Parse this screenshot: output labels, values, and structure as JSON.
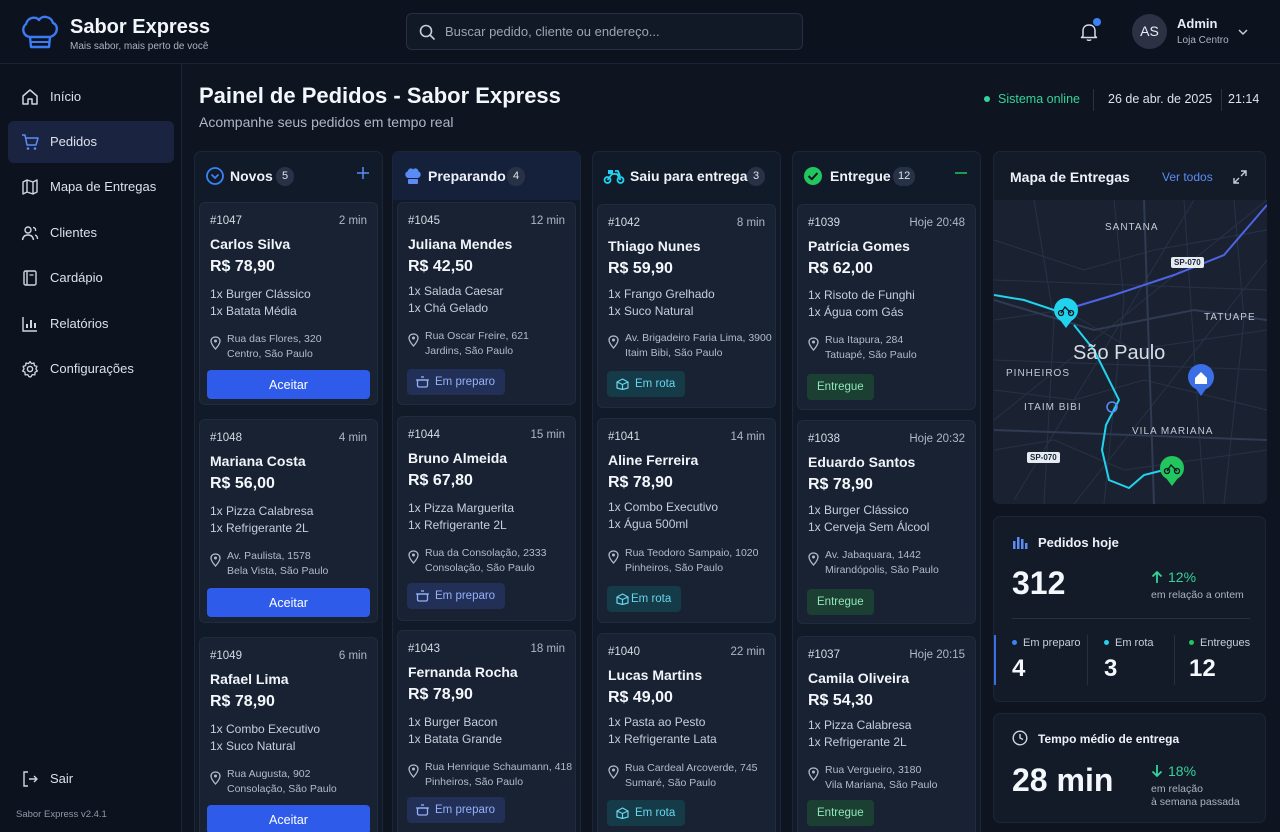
{
  "header": {
    "brand": "Sabor Express",
    "tagline": "Mais sabor, mais perto de você",
    "search_placeholder": "Buscar pedido, cliente ou endereço...",
    "user_initials": "AS",
    "user_name": "Admin",
    "user_store": "Loja Centro"
  },
  "sidebar": {
    "items": [
      {
        "label": "Início",
        "icon": "home-icon"
      },
      {
        "label": "Pedidos",
        "icon": "cart-icon"
      },
      {
        "label": "Mapa de Entregas",
        "icon": "map-icon"
      },
      {
        "label": "Clientes",
        "icon": "users-icon"
      },
      {
        "label": "Cardápio",
        "icon": "menu-book-icon"
      },
      {
        "label": "Relatórios",
        "icon": "bar-chart-icon"
      },
      {
        "label": "Configurações",
        "icon": "gear-icon"
      }
    ],
    "logout": "Sair",
    "version": "Sabor Express v2.4.1"
  },
  "page": {
    "title": "Painel de Pedidos - Sabor Express",
    "subtitle": "Acompanhe seus pedidos em tempo real",
    "status": "Sistema online",
    "date": "26 de abr. de 2025",
    "time": "21:14"
  },
  "accent_colors": {
    "novos": "#3b82f6",
    "preparando": "#3b82f6",
    "rota": "#22d3ee",
    "entregue": "#22c55e"
  },
  "columns": {
    "novos": {
      "title": "Novos",
      "count": "5",
      "orders": [
        {
          "id": "#1047",
          "time": "2 min",
          "name": "Carlos Silva",
          "price": "R$ 78,90",
          "items": [
            "1x  Burger Clássico",
            "1x  Batata Média"
          ],
          "addr1": "Rua das Flores, 320",
          "addr2": "Centro, São Paulo",
          "action": "Aceitar"
        },
        {
          "id": "#1048",
          "time": "4 min",
          "name": "Mariana Costa",
          "price": "R$ 56,00",
          "items": [
            "1x  Pizza Calabresa",
            "1x  Refrigerante 2L"
          ],
          "addr1": "Av. Paulista, 1578",
          "addr2": "Bela Vista, São Paulo",
          "action": "Aceitar"
        },
        {
          "id": "#1049",
          "time": "6 min",
          "name": "Rafael Lima",
          "price": "R$ 78,90",
          "items": [
            "1x  Combo Executivo",
            "1x  Suco Natural"
          ],
          "addr1": "Rua Augusta, 902",
          "addr2": "Consolação, São Paulo",
          "action": "Aceitar"
        }
      ]
    },
    "preparando": {
      "title": "Preparando",
      "count": "4",
      "orders": [
        {
          "id": "#1045",
          "time": "12 min",
          "name": "Juliana Mendes",
          "price": "R$ 42,50",
          "items": [
            "1x  Salada Caesar",
            "1x  Chá Gelado"
          ],
          "addr1": "Rua Oscar Freire, 621",
          "addr2": "Jardins, São Paulo",
          "status": "Em preparo"
        },
        {
          "id": "#1044",
          "time": "15 min",
          "name": "Bruno Almeida",
          "price": "R$ 67,80",
          "items": [
            "1x  Pizza Marguerita",
            "1x  Refrigerante 2L"
          ],
          "addr1": "Rua da Consolação, 2333",
          "addr2": "Consolação, São Paulo",
          "status": "Em preparo"
        },
        {
          "id": "#1043",
          "time": "18 min",
          "name": "Fernanda Rocha",
          "price": "R$ 78,90",
          "items": [
            "1x  Burger Bacon",
            "1x  Batata Grande"
          ],
          "addr1": "Rua Henrique Schaumann, 418",
          "addr2": "Pinheiros, São Paulo",
          "status": "Em preparo"
        }
      ]
    },
    "rota": {
      "title": "Saiu para entrega",
      "count": "3",
      "orders": [
        {
          "id": "#1042",
          "time": "8 min",
          "name": "Thiago Nunes",
          "price": "R$ 59,90",
          "items": [
            "1x  Frango Grelhado",
            "1x  Suco Natural"
          ],
          "addr1": "Av. Brigadeiro Faria Lima, 3900",
          "addr2": "Itaim Bibi, São Paulo",
          "status": "Em rota"
        },
        {
          "id": "#1041",
          "time": "14 min",
          "name": "Aline Ferreira",
          "price": "R$ 78,90",
          "items": [
            "1x  Combo Executivo",
            "1x  Água 500ml"
          ],
          "addr1": "Rua Teodoro Sampaio, 1020",
          "addr2": "Pinheiros, São Paulo",
          "status": "Em rota"
        },
        {
          "id": "#1040",
          "time": "22 min",
          "name": "Lucas Martins",
          "price": "R$ 49,00",
          "items": [
            "1x  Pasta ao Pesto",
            "1x  Refrigerante Lata"
          ],
          "addr1": "Rua Cardeal Arcoverde, 745",
          "addr2": "Sumaré, São Paulo",
          "status": "Em rota"
        }
      ]
    },
    "entregue": {
      "title": "Entregue",
      "count": "12",
      "orders": [
        {
          "id": "#1039",
          "time": "Hoje 20:48",
          "name": "Patrícia Gomes",
          "price": "R$ 62,00",
          "items": [
            "1x  Risoto de Funghi",
            "1x  Água com Gás"
          ],
          "addr1": "Rua Itapura, 284",
          "addr2": "Tatuapé, São Paulo",
          "status": "Entregue"
        },
        {
          "id": "#1038",
          "time": "Hoje 20:32",
          "name": "Eduardo Santos",
          "price": "R$ 78,90",
          "items": [
            "1x  Burger Clássico",
            "1x  Cerveja Sem Álcool"
          ],
          "addr1": "Av. Jabaquara, 1442",
          "addr2": "Mirandópolis, São Paulo",
          "status": "Entregue"
        },
        {
          "id": "#1037",
          "time": "Hoje 20:15",
          "name": "Camila Oliveira",
          "price": "R$ 54,30",
          "items": [
            "1x  Pizza Calabresa",
            "1x  Refrigerante 2L"
          ],
          "addr1": "Rua Vergueiro, 3180",
          "addr2": "Vila Mariana, São Paulo",
          "status": "Entregue"
        }
      ]
    }
  },
  "map": {
    "title": "Mapa de Entregas",
    "link": "Ver todos",
    "city": "São Paulo",
    "labels": [
      "SANTANA",
      "TATUAPE",
      "PINHEIROS",
      "ITAIM BIBI",
      "VILA MARIANA"
    ],
    "roads": [
      "SP-070",
      "SP-070"
    ]
  },
  "stats_today": {
    "title": "Pedidos hoje",
    "total": "312",
    "delta": "12%",
    "delta_note": "em relação a ontem",
    "breakdown": [
      {
        "label": "Em preparo",
        "value": "4",
        "color": "#3b82f6"
      },
      {
        "label": "Em rota",
        "value": "3",
        "color": "#22d3ee"
      },
      {
        "label": "Entregues",
        "value": "12",
        "color": "#22c55e"
      }
    ]
  },
  "avg_time": {
    "title": "Tempo médio de entrega",
    "value": "28 min",
    "delta": "18%",
    "note1": "em relação",
    "note2": "à semana passada"
  }
}
